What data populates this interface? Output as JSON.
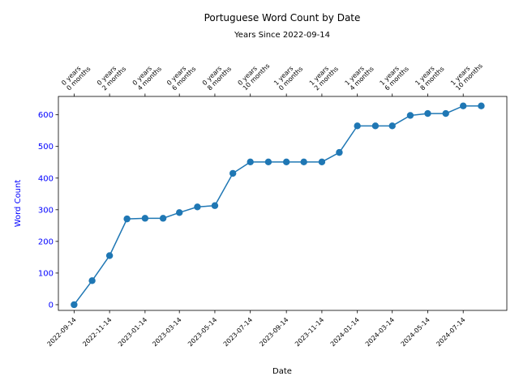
{
  "chart_data": {
    "type": "line",
    "title": "Portuguese Word Count by Date",
    "subtitle": "Years Since 2022-09-14",
    "xlabel": "Date",
    "ylabel": "Word Count",
    "ylim": [
      -18,
      658
    ],
    "yticks": [
      0,
      100,
      200,
      300,
      400,
      500,
      600
    ],
    "xlim": [
      "2022-08-18",
      "2024-09-27"
    ],
    "grid": false,
    "legend": "none",
    "colors": {
      "line": "#1f77b4",
      "ylabel": "#0000ff",
      "ytick": "#0000ff",
      "text": "#000000"
    },
    "x_bottom_ticks": [
      "2022-09-14",
      "2022-11-14",
      "2023-01-14",
      "2023-03-14",
      "2023-05-14",
      "2023-07-14",
      "2023-09-14",
      "2023-11-14",
      "2024-01-14",
      "2024-03-14",
      "2024-05-14",
      "2024-07-14"
    ],
    "x_top_ticks": [
      {
        "date": "2022-09-14",
        "line1": "0 years",
        "line2": "0 months"
      },
      {
        "date": "2022-11-14",
        "line1": "0 years",
        "line2": "2 months"
      },
      {
        "date": "2023-01-14",
        "line1": "0 years",
        "line2": "4 months"
      },
      {
        "date": "2023-03-14",
        "line1": "0 years",
        "line2": "6 months"
      },
      {
        "date": "2023-05-14",
        "line1": "0 years",
        "line2": "8 months"
      },
      {
        "date": "2023-07-14",
        "line1": "0 years",
        "line2": "10 months"
      },
      {
        "date": "2023-09-14",
        "line1": "1 years",
        "line2": "0 months"
      },
      {
        "date": "2023-11-14",
        "line1": "1 years",
        "line2": "2 months"
      },
      {
        "date": "2024-01-14",
        "line1": "1 years",
        "line2": "4 months"
      },
      {
        "date": "2024-03-14",
        "line1": "1 years",
        "line2": "6 months"
      },
      {
        "date": "2024-05-14",
        "line1": "1 years",
        "line2": "8 months"
      },
      {
        "date": "2024-07-14",
        "line1": "1 years",
        "line2": "10 months"
      }
    ],
    "series": [
      {
        "points": [
          {
            "x": "2022-09-14",
            "y": 0
          },
          {
            "x": "2022-10-15",
            "y": 76
          },
          {
            "x": "2022-11-14",
            "y": 155
          },
          {
            "x": "2022-12-14",
            "y": 271
          },
          {
            "x": "2023-01-14",
            "y": 273
          },
          {
            "x": "2023-02-14",
            "y": 273
          },
          {
            "x": "2023-03-14",
            "y": 291
          },
          {
            "x": "2023-04-14",
            "y": 309
          },
          {
            "x": "2023-05-14",
            "y": 313
          },
          {
            "x": "2023-06-14",
            "y": 415
          },
          {
            "x": "2023-07-14",
            "y": 451
          },
          {
            "x": "2023-08-14",
            "y": 451
          },
          {
            "x": "2023-09-14",
            "y": 451
          },
          {
            "x": "2023-10-14",
            "y": 451
          },
          {
            "x": "2023-11-14",
            "y": 451
          },
          {
            "x": "2023-12-14",
            "y": 481
          },
          {
            "x": "2024-01-14",
            "y": 565
          },
          {
            "x": "2024-02-14",
            "y": 565
          },
          {
            "x": "2024-03-14",
            "y": 565
          },
          {
            "x": "2024-04-14",
            "y": 598
          },
          {
            "x": "2024-05-14",
            "y": 604
          },
          {
            "x": "2024-06-14",
            "y": 604
          },
          {
            "x": "2024-07-14",
            "y": 628
          },
          {
            "x": "2024-08-14",
            "y": 628
          }
        ]
      }
    ]
  }
}
